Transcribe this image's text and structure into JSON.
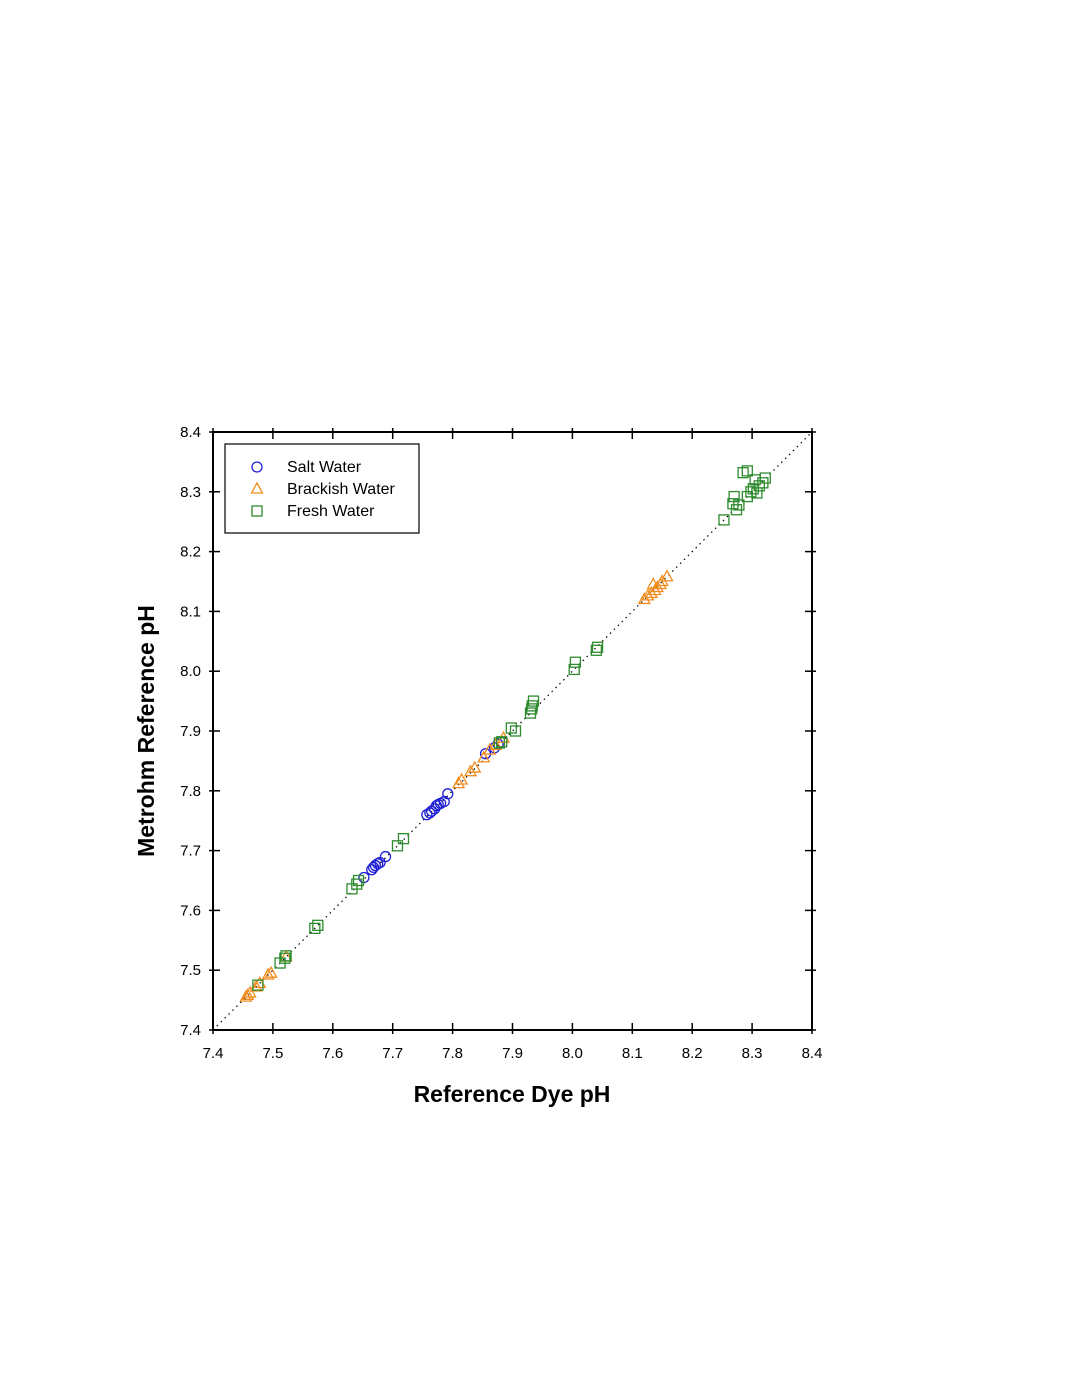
{
  "chart_data": {
    "type": "scatter",
    "title": "",
    "xlabel": "Reference Dye pH",
    "ylabel": "Metrohm Reference pH",
    "xlim": [
      7.4,
      8.4
    ],
    "ylim": [
      7.4,
      8.4
    ],
    "x_ticks": [
      "7.4",
      "7.5",
      "7.6",
      "7.7",
      "7.8",
      "7.9",
      "8.0",
      "8.1",
      "8.2",
      "8.3",
      "8.4"
    ],
    "y_ticks": [
      "7.4",
      "7.5",
      "7.6",
      "7.7",
      "7.8",
      "7.9",
      "8.0",
      "8.1",
      "8.2",
      "8.3",
      "8.4"
    ],
    "grid": false,
    "legend_position": "top-left",
    "reference_line": {
      "style": "dotted",
      "from": [
        7.4,
        7.4
      ],
      "to": [
        8.4,
        8.4
      ]
    },
    "series": [
      {
        "name": "Salt Water",
        "marker": "circle",
        "color": "#1f1fd6",
        "points": [
          [
            7.652,
            7.655
          ],
          [
            7.665,
            7.668
          ],
          [
            7.668,
            7.672
          ],
          [
            7.671,
            7.675
          ],
          [
            7.675,
            7.678
          ],
          [
            7.679,
            7.68
          ],
          [
            7.688,
            7.69
          ],
          [
            7.757,
            7.76
          ],
          [
            7.762,
            7.763
          ],
          [
            7.765,
            7.766
          ],
          [
            7.77,
            7.77
          ],
          [
            7.773,
            7.775
          ],
          [
            7.776,
            7.777
          ],
          [
            7.78,
            7.779
          ],
          [
            7.786,
            7.782
          ],
          [
            7.792,
            7.795
          ],
          [
            7.855,
            7.862
          ],
          [
            7.87,
            7.872
          ],
          [
            7.876,
            7.878
          ]
        ]
      },
      {
        "name": "Brackish Water",
        "marker": "triangle",
        "color": "#f28c1e",
        "points": [
          [
            7.455,
            7.455
          ],
          [
            7.458,
            7.458
          ],
          [
            7.462,
            7.462
          ],
          [
            7.472,
            7.472
          ],
          [
            7.478,
            7.478
          ],
          [
            7.492,
            7.492
          ],
          [
            7.497,
            7.495
          ],
          [
            7.522,
            7.522
          ],
          [
            7.81,
            7.812
          ],
          [
            7.815,
            7.818
          ],
          [
            7.83,
            7.832
          ],
          [
            7.837,
            7.838
          ],
          [
            7.852,
            7.855
          ],
          [
            7.862,
            7.868
          ],
          [
            7.872,
            7.876
          ],
          [
            7.885,
            7.888
          ],
          [
            8.12,
            8.12
          ],
          [
            8.126,
            8.126
          ],
          [
            8.132,
            8.13
          ],
          [
            8.135,
            8.145
          ],
          [
            8.138,
            8.135
          ],
          [
            8.142,
            8.14
          ],
          [
            8.147,
            8.145
          ],
          [
            8.15,
            8.15
          ],
          [
            8.158,
            8.158
          ]
        ]
      },
      {
        "name": "Fresh Water",
        "marker": "square",
        "color": "#2e8b2e",
        "points": [
          [
            7.475,
            7.475
          ],
          [
            7.512,
            7.512
          ],
          [
            7.52,
            7.52
          ],
          [
            7.522,
            7.524
          ],
          [
            7.57,
            7.57
          ],
          [
            7.575,
            7.575
          ],
          [
            7.632,
            7.636
          ],
          [
            7.64,
            7.644
          ],
          [
            7.643,
            7.65
          ],
          [
            7.708,
            7.708
          ],
          [
            7.718,
            7.72
          ],
          [
            7.878,
            7.88
          ],
          [
            7.882,
            7.882
          ],
          [
            7.898,
            7.905
          ],
          [
            7.905,
            7.9
          ],
          [
            7.93,
            7.93
          ],
          [
            7.932,
            7.937
          ],
          [
            7.933,
            7.942
          ],
          [
            7.935,
            7.95
          ],
          [
            8.003,
            8.003
          ],
          [
            8.005,
            8.015
          ],
          [
            8.04,
            8.035
          ],
          [
            8.042,
            8.04
          ],
          [
            8.253,
            8.253
          ],
          [
            8.268,
            8.28
          ],
          [
            8.27,
            8.292
          ],
          [
            8.274,
            8.27
          ],
          [
            8.278,
            8.278
          ],
          [
            8.285,
            8.332
          ],
          [
            8.292,
            8.335
          ],
          [
            8.292,
            8.292
          ],
          [
            8.298,
            8.3
          ],
          [
            8.302,
            8.305
          ],
          [
            8.305,
            8.32
          ],
          [
            8.308,
            8.298
          ],
          [
            8.312,
            8.31
          ],
          [
            8.318,
            8.315
          ],
          [
            8.322,
            8.323
          ]
        ]
      }
    ]
  }
}
